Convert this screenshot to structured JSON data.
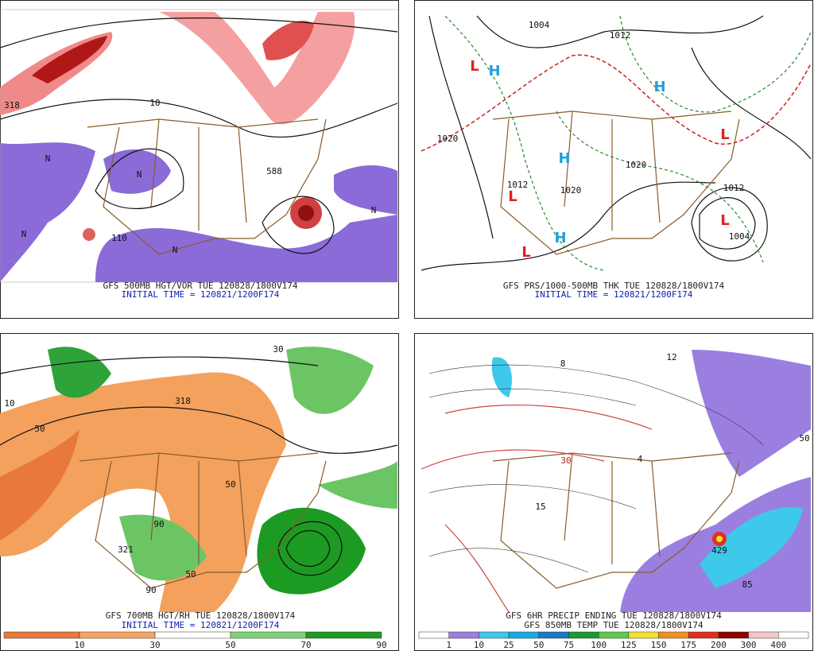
{
  "panels": [
    {
      "caption": "GFS 500MB HGT/VOR TUE 120828/1800V174",
      "initial": "INITIAL TIME = 120821/1200F174",
      "labels": [
        "588",
        "10",
        "110",
        "318",
        "N",
        "N",
        "N",
        "N",
        "N"
      ]
    },
    {
      "caption": "GFS PRS/1000-500MB THK TUE 120828/1800V174",
      "initial": "INITIAL TIME = 120821/1200F174",
      "labels": [
        "L",
        "H",
        "H",
        "L",
        "H",
        "L",
        "H",
        "L",
        "L",
        "1004",
        "1012",
        "1020",
        "1020",
        "1020",
        "1012",
        "1012",
        "1004"
      ]
    },
    {
      "caption": "GFS 700MB HGT/RH TUE 120828/1800V174",
      "initial": "INITIAL TIME = 120821/1200F174",
      "labels": [
        "50",
        "10",
        "90",
        "30",
        "318",
        "321",
        "50",
        "90",
        "50"
      ],
      "legend": {
        "labels": [
          "10",
          "30",
          "50",
          "70",
          "90"
        ],
        "colors": [
          "#e8793a",
          "#f6a564",
          "#ffffff",
          "#7fd377",
          "#1c9a22"
        ]
      }
    },
    {
      "caption": "GFS 6HR PRECIP ENDING TUE 120828/1800V174",
      "initial": "GFS 850MB TEMP TUE 120828/1800V174",
      "labels": [
        "8",
        "12",
        "30",
        "15",
        "429",
        "85",
        "50",
        "4"
      ],
      "legend": {
        "labels": [
          "1",
          "10",
          "25",
          "50",
          "75",
          "100",
          "125",
          "150",
          "175",
          "200",
          "300",
          "400"
        ],
        "colors": [
          "#ffffff",
          "#9b7fe0",
          "#3ec8ea",
          "#1aa8e0",
          "#1a78c8",
          "#1a9a30",
          "#60c850",
          "#f0e030",
          "#f09020",
          "#e03020",
          "#900000",
          "#f4c8c8",
          "#ffffff"
        ]
      }
    }
  ]
}
